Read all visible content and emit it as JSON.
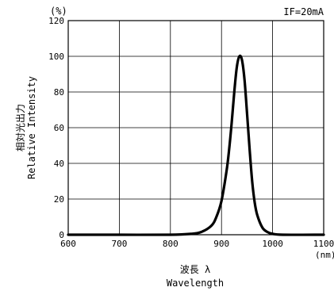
{
  "chart_data": {
    "type": "line",
    "ylabel_unit": "(%)",
    "condition": "IF=20mA",
    "ylabel_jp": "相対光出力",
    "ylabel_en": "Relative Intensity",
    "xlabel_jp": "波長 λ",
    "xlabel_en": "Wavelength",
    "xunit": "(nm)",
    "xlim": [
      600,
      1100
    ],
    "ylim": [
      0,
      120
    ],
    "xticks": [
      600,
      700,
      800,
      900,
      1000,
      1100
    ],
    "yticks": [
      0,
      20,
      40,
      60,
      80,
      100,
      120
    ],
    "grid": true,
    "series": [
      {
        "x": [
          600,
          700,
          800,
          840,
          860,
          880,
          890,
          900,
          910,
          915,
          920,
          925,
          930,
          935,
          940,
          945,
          950,
          955,
          960,
          965,
          970,
          980,
          990,
          1000,
          1020,
          1100
        ],
        "values": [
          0,
          0,
          0,
          0.5,
          1.5,
          5,
          10,
          19,
          36,
          48,
          63,
          80,
          94,
          100,
          98,
          87,
          68,
          48,
          30,
          18,
          11,
          4,
          1.5,
          0.5,
          0,
          0
        ]
      }
    ]
  }
}
